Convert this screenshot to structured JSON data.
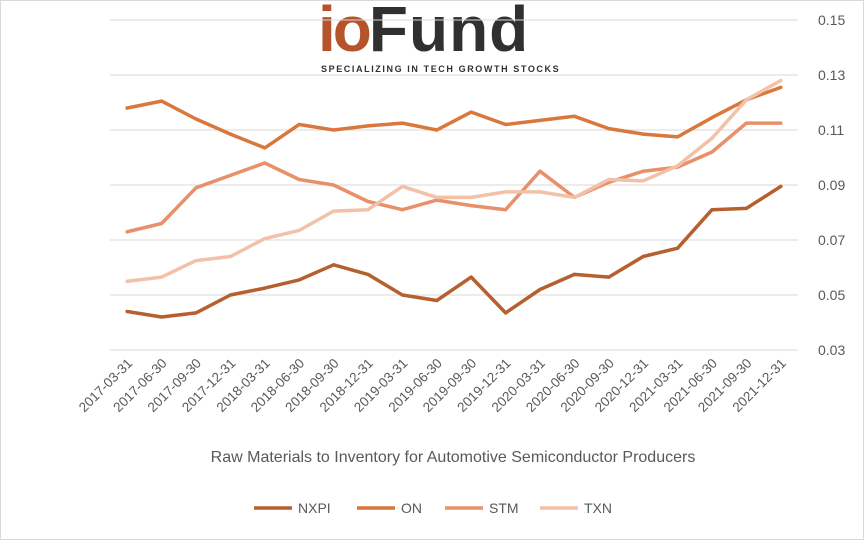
{
  "logo": {
    "brand_prefix": "io",
    "brand_suffix": "Fund",
    "tagline": "SPECIALIZING IN TECH GROWTH STOCKS"
  },
  "chart_data": {
    "type": "line",
    "xlabel": "Raw Materials to Inventory for Automotive Semiconductor Producers",
    "ylabel": "",
    "ylim": [
      0.03,
      0.15
    ],
    "yticks": [
      0.03,
      0.05,
      0.07,
      0.09,
      0.11,
      0.13,
      0.15
    ],
    "grid": "horizontal",
    "y_axis_side": "right",
    "legend_position": "bottom",
    "categories": [
      "2017-03-31",
      "2017-06-30",
      "2017-09-30",
      "2017-12-31",
      "2018-03-31",
      "2018-06-30",
      "2018-09-30",
      "2018-12-31",
      "2019-03-31",
      "2019-06-30",
      "2019-09-30",
      "2019-12-31",
      "2020-03-31",
      "2020-06-30",
      "2020-09-30",
      "2020-12-31",
      "2021-03-31",
      "2021-06-30",
      "2021-09-30",
      "2021-12-31"
    ],
    "series": [
      {
        "name": "NXPI",
        "color": "#b5602e",
        "values": [
          0.044,
          0.042,
          0.0435,
          0.05,
          0.0525,
          0.0555,
          0.061,
          0.0575,
          0.05,
          0.048,
          0.0565,
          0.0435,
          0.052,
          0.0575,
          0.0565,
          0.064,
          0.067,
          0.081,
          0.0815,
          0.0895
        ]
      },
      {
        "name": "ON",
        "color": "#d9773d",
        "values": [
          0.118,
          0.1205,
          0.114,
          0.1085,
          0.1035,
          0.112,
          0.11,
          0.1115,
          0.1125,
          0.11,
          0.1165,
          0.112,
          0.1135,
          0.115,
          0.1105,
          0.1085,
          0.1075,
          0.1145,
          0.121,
          0.1255
        ]
      },
      {
        "name": "STM",
        "color": "#e8906a",
        "values": [
          0.073,
          0.076,
          0.089,
          0.0935,
          0.098,
          0.092,
          0.09,
          0.084,
          0.081,
          0.0845,
          0.0825,
          0.081,
          0.095,
          0.0855,
          0.091,
          0.095,
          0.0965,
          0.102,
          0.1125,
          0.1125
        ]
      },
      {
        "name": "TXN",
        "color": "#f3c0a8",
        "values": [
          0.055,
          0.0565,
          0.0625,
          0.064,
          0.0705,
          0.0735,
          0.0805,
          0.081,
          0.0895,
          0.0855,
          0.0855,
          0.0875,
          0.0875,
          0.0855,
          0.092,
          0.0915,
          0.097,
          0.107,
          0.121,
          0.128
        ]
      }
    ]
  }
}
